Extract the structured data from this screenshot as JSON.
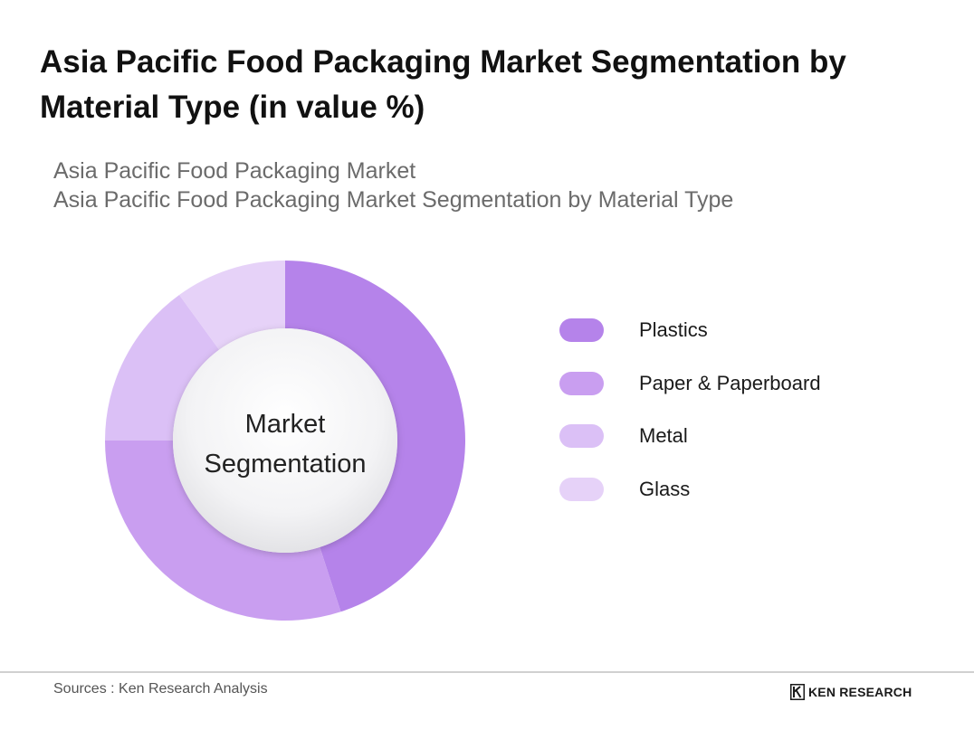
{
  "header": {
    "title": "Asia Pacific Food Packaging Market Segmentation by Material Type (in value %)",
    "subtitle_line1": "Asia Pacific Food Packaging Market",
    "subtitle_line2": "Asia Pacific Food Packaging Market Segmentation by Material Type"
  },
  "chart_data": {
    "type": "pie",
    "donut": true,
    "center_label_line1": "Market",
    "center_label_line2": "Segmentation",
    "legend_position": "right",
    "categories": [
      "Plastics",
      "Paper & Paperboard",
      "Metal",
      "Glass"
    ],
    "values": [
      45,
      30,
      15,
      10
    ],
    "colors": [
      "#b583ea",
      "#c99ef0",
      "#dbc0f6",
      "#e6d2f8"
    ],
    "value_labels_shown": false
  },
  "footer": {
    "source": "Sources : Ken Research Analysis",
    "brand": "KEN RESEARCH",
    "brand_icon": "ken-research-logo-icon"
  }
}
